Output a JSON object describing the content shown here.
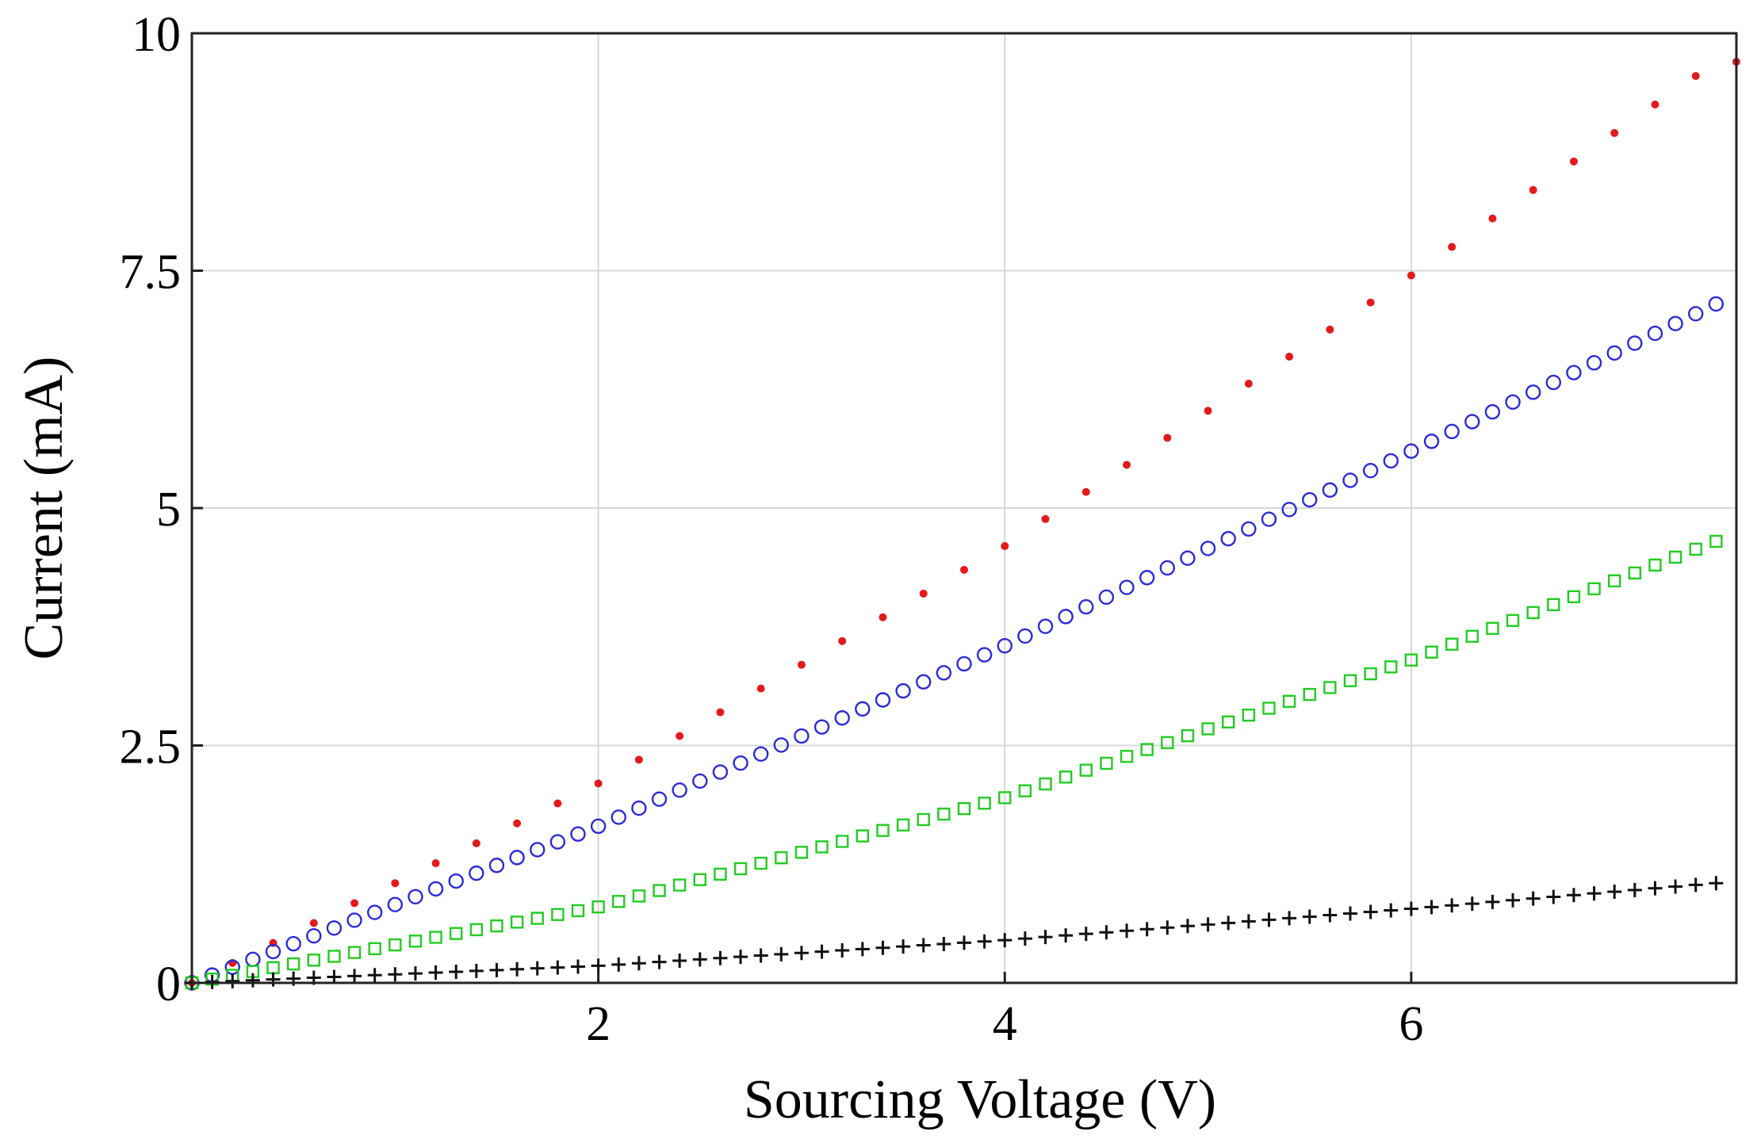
{
  "chart_data": {
    "type": "scatter",
    "title": "",
    "xlabel": "Sourcing Voltage (V)",
    "ylabel": "Current (mA)",
    "xlim": [
      0,
      7.6
    ],
    "ylim": [
      0,
      10
    ],
    "grid": true,
    "x_ticks": [
      2,
      4,
      6
    ],
    "x_tick_labels": [
      "2",
      "4",
      "6"
    ],
    "y_ticks": [
      0,
      2.5,
      5,
      7.5,
      10
    ],
    "y_tick_labels": [
      "0",
      "2.5",
      "5",
      "7.5",
      "10"
    ],
    "x_start": 0,
    "x_end": 7.5,
    "n_points": 76,
    "series": [
      {
        "name": "series-red-dots",
        "marker": "dot",
        "color": "#e31a1c",
        "slope_mA_per_V": 1.29,
        "x_step": 0.2,
        "y_at_2V": 2.1,
        "y_at_4V": 4.6,
        "y_at_6V": 7.45,
        "y_at_7.5V": 9.7
      },
      {
        "name": "series-blue-circles",
        "marker": "circle",
        "color": "#2b2bd8",
        "slope_mA_per_V": 0.95,
        "x_step": 0.1,
        "y_at_2V": 1.65,
        "y_at_4V": 3.55,
        "y_at_6V": 5.6,
        "y_at_7.5V": 7.15
      },
      {
        "name": "series-green-squares",
        "marker": "square",
        "color": "#22cc22",
        "slope_mA_per_V": 0.62,
        "x_step": 0.1,
        "y_at_2V": 0.8,
        "y_at_4V": 1.95,
        "y_at_6V": 3.4,
        "y_at_7.5V": 4.65
      },
      {
        "name": "series-black-plus",
        "marker": "plus",
        "color": "#111111",
        "slope_mA_per_V": 0.14,
        "x_step": 0.1,
        "y_at_2V": 0.18,
        "y_at_4V": 0.45,
        "y_at_6V": 0.78,
        "y_at_7.5V": 1.05
      }
    ]
  }
}
